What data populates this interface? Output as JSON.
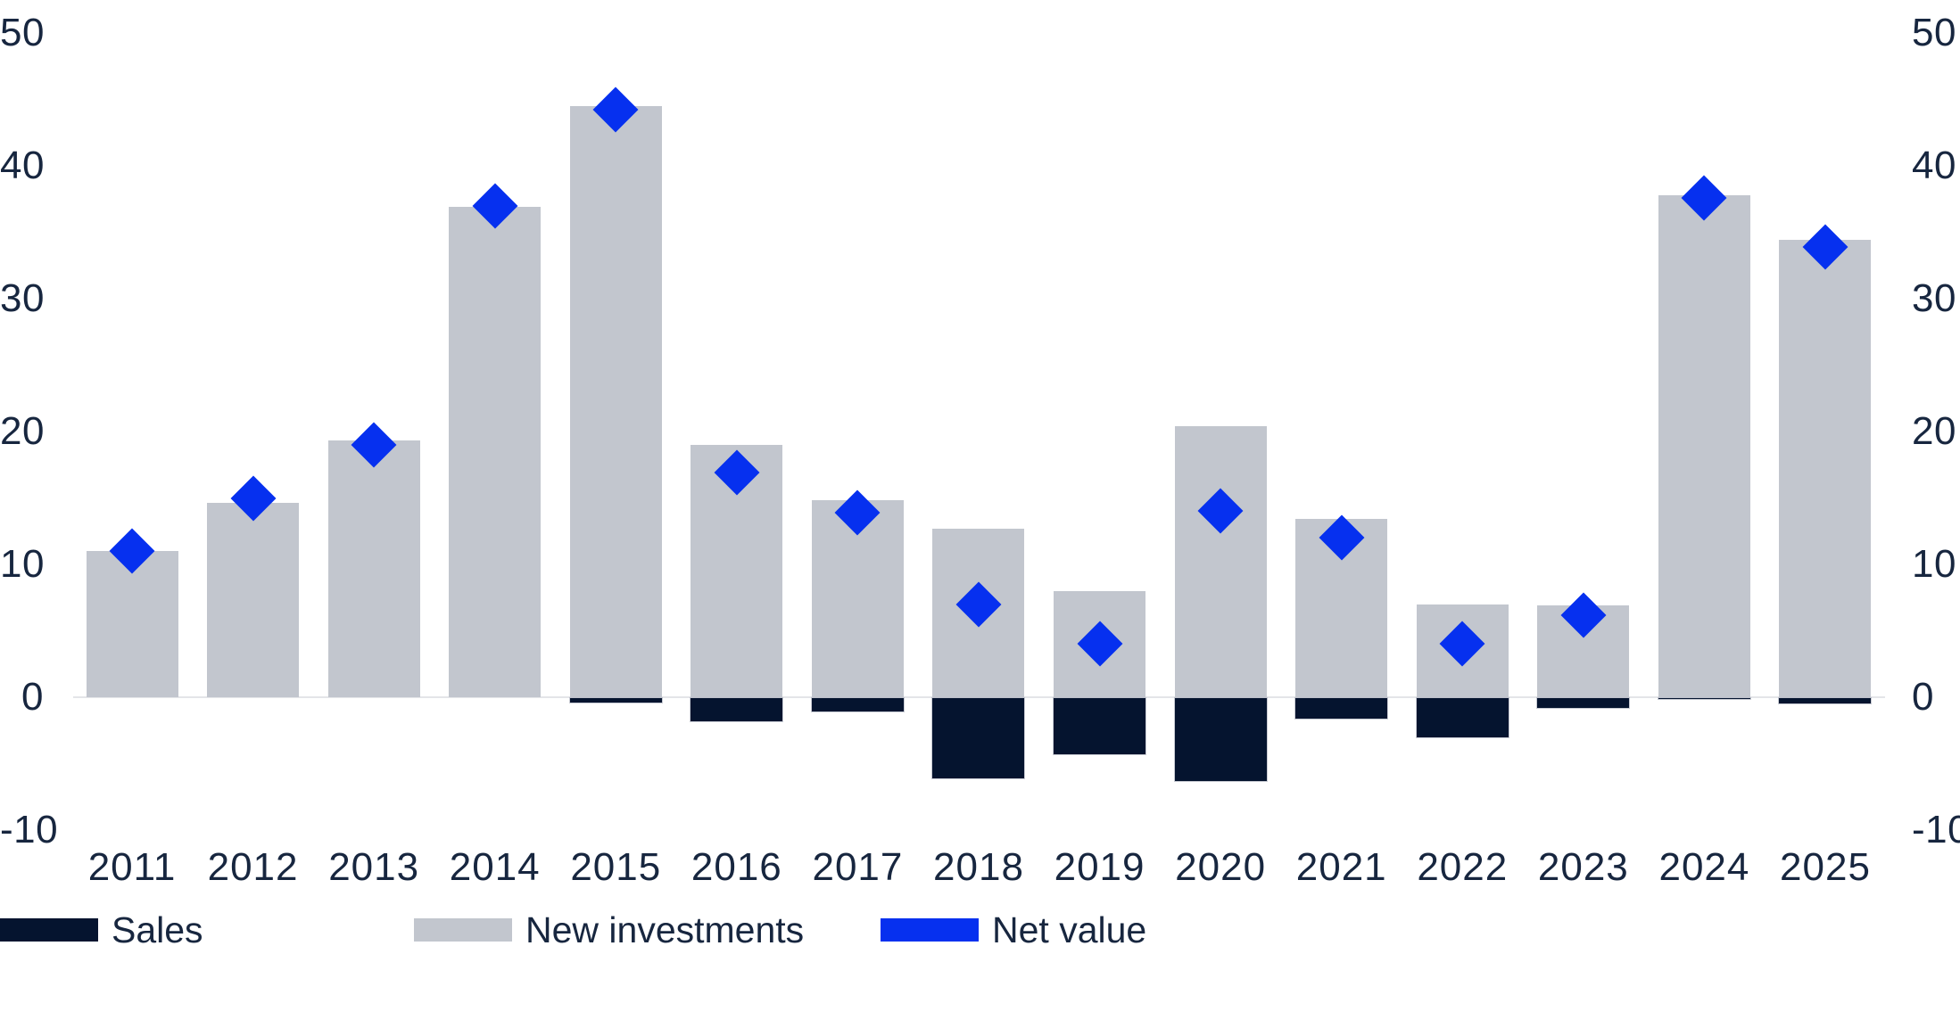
{
  "chart_data": {
    "type": "bar",
    "title": "",
    "xlabel": "",
    "ylabel": "",
    "categories": [
      "2011",
      "2012",
      "2013",
      "2014",
      "2015",
      "2016",
      "2017",
      "2018",
      "2019",
      "2020",
      "2021",
      "2022",
      "2023",
      "2024",
      "2025"
    ],
    "series": [
      {
        "name": "Sales",
        "type": "bar",
        "color": "#05142f",
        "values": [
          0,
          0,
          0,
          0,
          -0.4,
          -1.8,
          -1.1,
          -6.1,
          -4.3,
          -6.3,
          -1.6,
          -3.0,
          -0.8,
          -0.1,
          -0.5
        ]
      },
      {
        "name": "New investments",
        "type": "bar",
        "color": "#c2c6ce",
        "values": [
          11.0,
          14.6,
          19.3,
          36.9,
          44.5,
          19.0,
          14.8,
          12.7,
          8.0,
          20.4,
          13.4,
          7.0,
          6.9,
          37.8,
          34.4
        ]
      },
      {
        "name": "Net value",
        "type": "point-diamond",
        "color": "#0630ef",
        "values": [
          11.0,
          15.0,
          19.0,
          37.0,
          44.2,
          16.9,
          13.9,
          7.0,
          4.0,
          14.0,
          12.0,
          4.0,
          6.2,
          37.6,
          33.9
        ]
      }
    ],
    "ylim": [
      -10,
      50
    ],
    "yticks": [
      50,
      40,
      30,
      20,
      10,
      0,
      -10
    ],
    "y_axis_sides": [
      "left",
      "right"
    ],
    "grid": "zero-line-only",
    "legend_position": "bottom-left"
  },
  "colors": {
    "background": "#ffffff",
    "axis_text": "#17263f",
    "zero_line": "#e4e5e8",
    "sales": "#05142f",
    "new_investments": "#c2c6ce",
    "net_value": "#0630ef"
  }
}
